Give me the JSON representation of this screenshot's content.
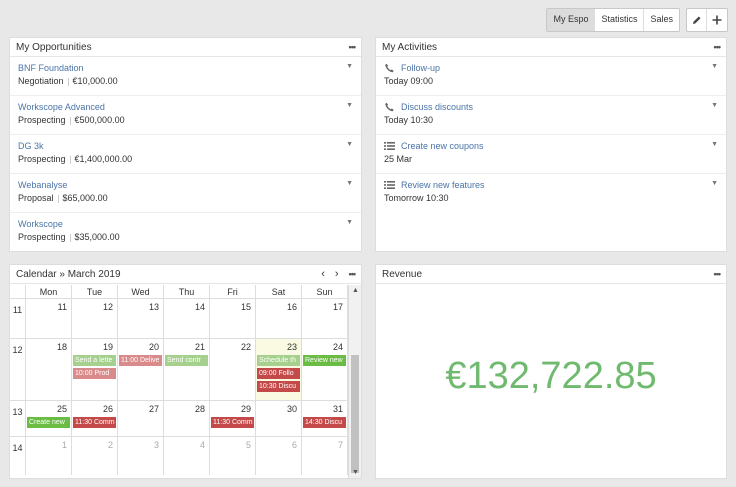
{
  "toolbar": {
    "tabs": [
      {
        "label": "My Espo",
        "active": true
      },
      {
        "label": "Statistics",
        "active": false
      },
      {
        "label": "Sales",
        "active": false
      }
    ],
    "icons": [
      "pencil-icon",
      "plus-icon"
    ]
  },
  "opportunities": {
    "title": "My Opportunities",
    "items": [
      {
        "name": "BNF Foundation",
        "stage": "Negotiation",
        "amount": "€10,000.00"
      },
      {
        "name": "Workscope Advanced",
        "stage": "Prospecting",
        "amount": "€500,000.00"
      },
      {
        "name": "DG 3k",
        "stage": "Prospecting",
        "amount": "€1,400,000.00"
      },
      {
        "name": "Webanalyse",
        "stage": "Proposal",
        "amount": "$65,000.00"
      },
      {
        "name": "Workscope",
        "stage": "Prospecting",
        "amount": "$35,000.00"
      }
    ]
  },
  "activities": {
    "title": "My Activities",
    "items": [
      {
        "icon": "phone-icon",
        "name": "Follow-up",
        "when": "Today 09:00"
      },
      {
        "icon": "phone-icon",
        "name": "Discuss discounts",
        "when": "Today 10:30"
      },
      {
        "icon": "task-list-icon",
        "name": "Create new coupons",
        "when": "25 Mar"
      },
      {
        "icon": "task-list-icon",
        "name": "Review new features",
        "when": "Tomorrow 10:30"
      }
    ]
  },
  "calendar": {
    "title": "Calendar » March 2019",
    "days": [
      "Mon",
      "Tue",
      "Wed",
      "Thu",
      "Fri",
      "Sat",
      "Sun"
    ],
    "weeks": [
      {
        "wk": "11",
        "dates": [
          "11",
          "12",
          "13",
          "14",
          "15",
          "16",
          "17"
        ]
      },
      {
        "wk": "12",
        "dates": [
          "18",
          "19",
          "20",
          "21",
          "22",
          "23",
          "24"
        ]
      },
      {
        "wk": "13",
        "dates": [
          "25",
          "26",
          "27",
          "28",
          "29",
          "30",
          "31"
        ]
      },
      {
        "wk": "14",
        "dates": [
          "1",
          "2",
          "3",
          "4",
          "5",
          "6",
          "7"
        ]
      }
    ],
    "events": {
      "tue19a": "Send a lette",
      "tue19b": "10:00 Prod",
      "wed20": "11:00 Delive",
      "thu21": "Send contr",
      "sat23a": "Schedule th",
      "sat23b": "09:00 Follo",
      "sat23c": "10:30 Discu",
      "sun24": "Review new",
      "mon25": "Create new",
      "tue26": "11:30 Comm",
      "fri29": "11:30 Comm",
      "sun31": "14:30 Discu"
    },
    "colors": {
      "green": "#a6d08e",
      "green_dark": "#6abc44",
      "red": "#d98a8a",
      "red_dark": "#c44a4a"
    }
  },
  "revenue": {
    "title": "Revenue",
    "value": "€132,722.85",
    "color": "#6fba6f"
  }
}
